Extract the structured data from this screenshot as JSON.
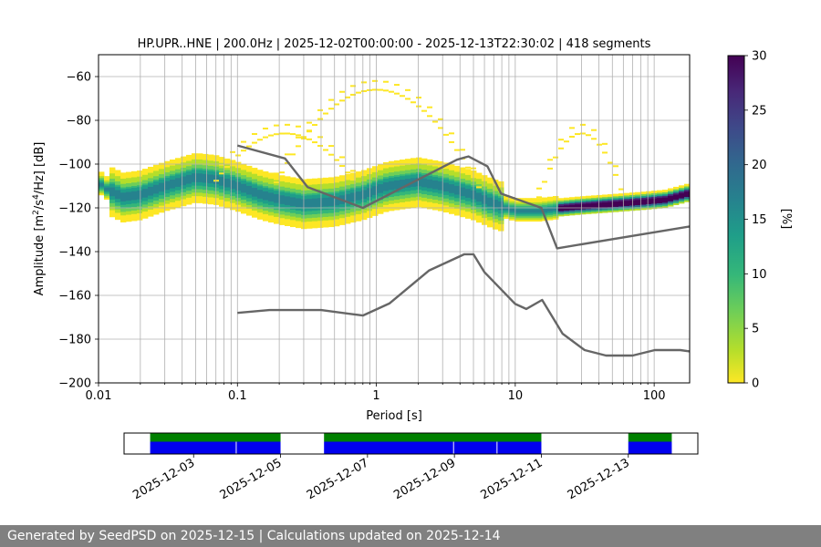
{
  "chart_data": {
    "type": "heatmap",
    "title": "HP.UPR..HNE | 200.0Hz | 2025-12-02T00:00:00 - 2025-12-13T22:30:02 | 418 segments",
    "xlabel": "Period [s]",
    "ylabel_parts": [
      "Amplitude [m",
      "2",
      "/s",
      "4",
      "/Hz] [dB]"
    ],
    "xscale": "log",
    "xlim": [
      0.01,
      180
    ],
    "ylim": [
      -200,
      -50
    ],
    "xticks": [
      {
        "value": 0.01,
        "label": "0.01"
      },
      {
        "value": 0.1,
        "label": "0.1"
      },
      {
        "value": 1,
        "label": "1"
      },
      {
        "value": 10,
        "label": "10"
      },
      {
        "value": 100,
        "label": "100"
      }
    ],
    "yticks": [
      -60,
      -80,
      -100,
      -120,
      -140,
      -160,
      -180,
      -200
    ],
    "grid": true,
    "colorbar": {
      "label": "[%]",
      "range": [
        0,
        30
      ],
      "ticks": [
        0,
        5,
        10,
        15,
        20,
        25,
        30
      ],
      "colormap": [
        "#fde725",
        "#b5de2b",
        "#6ece58",
        "#35b779",
        "#1f9e89",
        "#26828e",
        "#31688e",
        "#3e4989",
        "#482878",
        "#440154"
      ]
    },
    "ridge": {
      "description_free": true,
      "x": [
        0.01,
        0.012,
        0.015,
        0.02,
        0.03,
        0.05,
        0.07,
        0.1,
        0.15,
        0.2,
        0.3,
        0.5,
        0.8,
        1.2,
        2,
        3,
        5,
        7,
        10,
        15,
        20,
        30,
        50,
        80,
        120,
        180
      ],
      "y": [
        -108,
        -112,
        -115,
        -114,
        -110,
        -106,
        -107,
        -110,
        -114,
        -116,
        -118,
        -117,
        -114,
        -110,
        -108,
        -110,
        -114,
        -118,
        -121,
        -121,
        -120,
        -119,
        -118,
        -117,
        -116,
        -113
      ]
    },
    "noise_models": [
      {
        "role": "high",
        "color": "#666666",
        "x": [
          0.1,
          0.22,
          0.32,
          0.8,
          3.8,
          4.6,
          6.3,
          7.9,
          15.4,
          20,
          180
        ],
        "y": [
          -91.5,
          -97.4,
          -110.5,
          -120,
          -98,
          -96.5,
          -101,
          -113.5,
          -120,
          -138.5,
          -128.5
        ]
      },
      {
        "role": "low",
        "color": "#666666",
        "x": [
          0.1,
          0.17,
          0.4,
          0.8,
          1.24,
          2.4,
          4.3,
          5,
          6,
          10,
          12,
          15.6,
          21.9,
          31.6,
          45,
          70,
          101,
          154,
          180
        ],
        "y": [
          -168,
          -166.7,
          -166.7,
          -169.2,
          -163.7,
          -148.6,
          -141.2,
          -141.2,
          -149.4,
          -163.9,
          -166.2,
          -162.1,
          -177.5,
          -185,
          -187.5,
          -187.5,
          -185,
          -185,
          -185.6
        ]
      }
    ]
  },
  "timeline": {
    "ticks": [
      "2025-12-03",
      "2025-12-05",
      "2025-12-07",
      "2025-12-09",
      "2025-12-11",
      "2025-12-13"
    ],
    "tick_days": [
      3,
      5,
      7,
      9,
      11,
      13
    ],
    "start_day": 1.4,
    "end_day": 14.6,
    "coverage_green": [
      [
        2,
        5
      ],
      [
        6,
        11
      ],
      [
        13,
        14
      ]
    ],
    "coverage_blue": [
      [
        2,
        3.97
      ],
      [
        3.99,
        5
      ],
      [
        6,
        8.97
      ],
      [
        8.99,
        9.97
      ],
      [
        9.99,
        11
      ],
      [
        13,
        14
      ]
    ],
    "green_color": "#008000",
    "blue_color": "#0000ee"
  },
  "footer": {
    "text": "Generated by SeedPSD on 2025-12-15 | Calculations updated on 2025-12-14"
  }
}
